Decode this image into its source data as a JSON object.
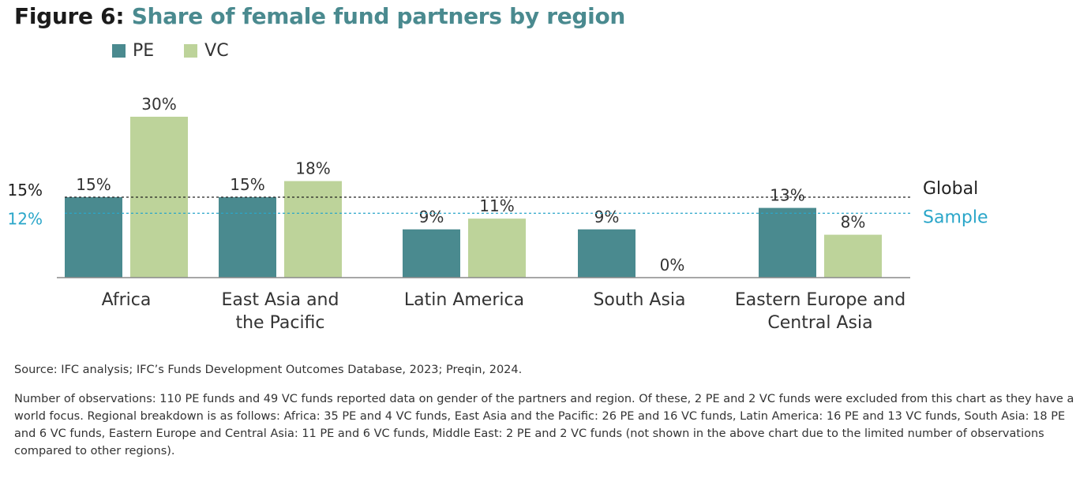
{
  "figure": {
    "label": "Figure 6:",
    "title": "Share of female fund partners by region"
  },
  "legend": [
    {
      "name": "PE",
      "color": "#4a8a8f"
    },
    {
      "name": "VC",
      "color": "#bdd39a"
    }
  ],
  "chart_data": {
    "type": "bar",
    "categories": [
      [
        "Africa"
      ],
      [
        "East Asia and",
        "the Pacific"
      ],
      [
        "Latin America"
      ],
      [
        "South Asia"
      ],
      [
        "Eastern Europe and",
        "Central Asia"
      ]
    ],
    "series": [
      {
        "name": "PE",
        "color": "#4a8a8f",
        "values": [
          15,
          15,
          9,
          9,
          13
        ],
        "labels": [
          "15%",
          "15%",
          "9%",
          "9%",
          "13%"
        ]
      },
      {
        "name": "VC",
        "color": "#bdd39a",
        "values": [
          30,
          18,
          11,
          0,
          8
        ],
        "labels": [
          "30%",
          "18%",
          "11%",
          "0%",
          "8%"
        ]
      }
    ],
    "reference_lines": [
      {
        "label": "Global",
        "value": 15,
        "value_label": "15%",
        "color": "#222222",
        "style": "dashed"
      },
      {
        "label": "Sample",
        "value": 12,
        "value_label": "12%",
        "color": "#2aa6c9",
        "style": "dashed"
      }
    ],
    "ylim": [
      0,
      30
    ],
    "grid": false
  },
  "source": "Source: IFC analysis; IFC’s Funds Development Outcomes Database, 2023; Preqin, 2024.",
  "note": "Number of observations: 110 PE funds and 49 VC funds reported data on gender of the partners and region. Of these, 2 PE and 2 VC funds were excluded from this chart as they have a world focus. Regional breakdown is as follows: Africa: 35 PE and 4 VC funds, East Asia and the Pacific: 26 PE and 16 VC funds, Latin America: 16 PE and 13 VC funds, South Asia: 18 PE and 6 VC funds, Eastern Europe and Central Asia: 11 PE and 6 VC funds, Middle East: 2 PE and 2 VC funds (not shown in the above chart due to the limited number of observations compared to other regions)."
}
